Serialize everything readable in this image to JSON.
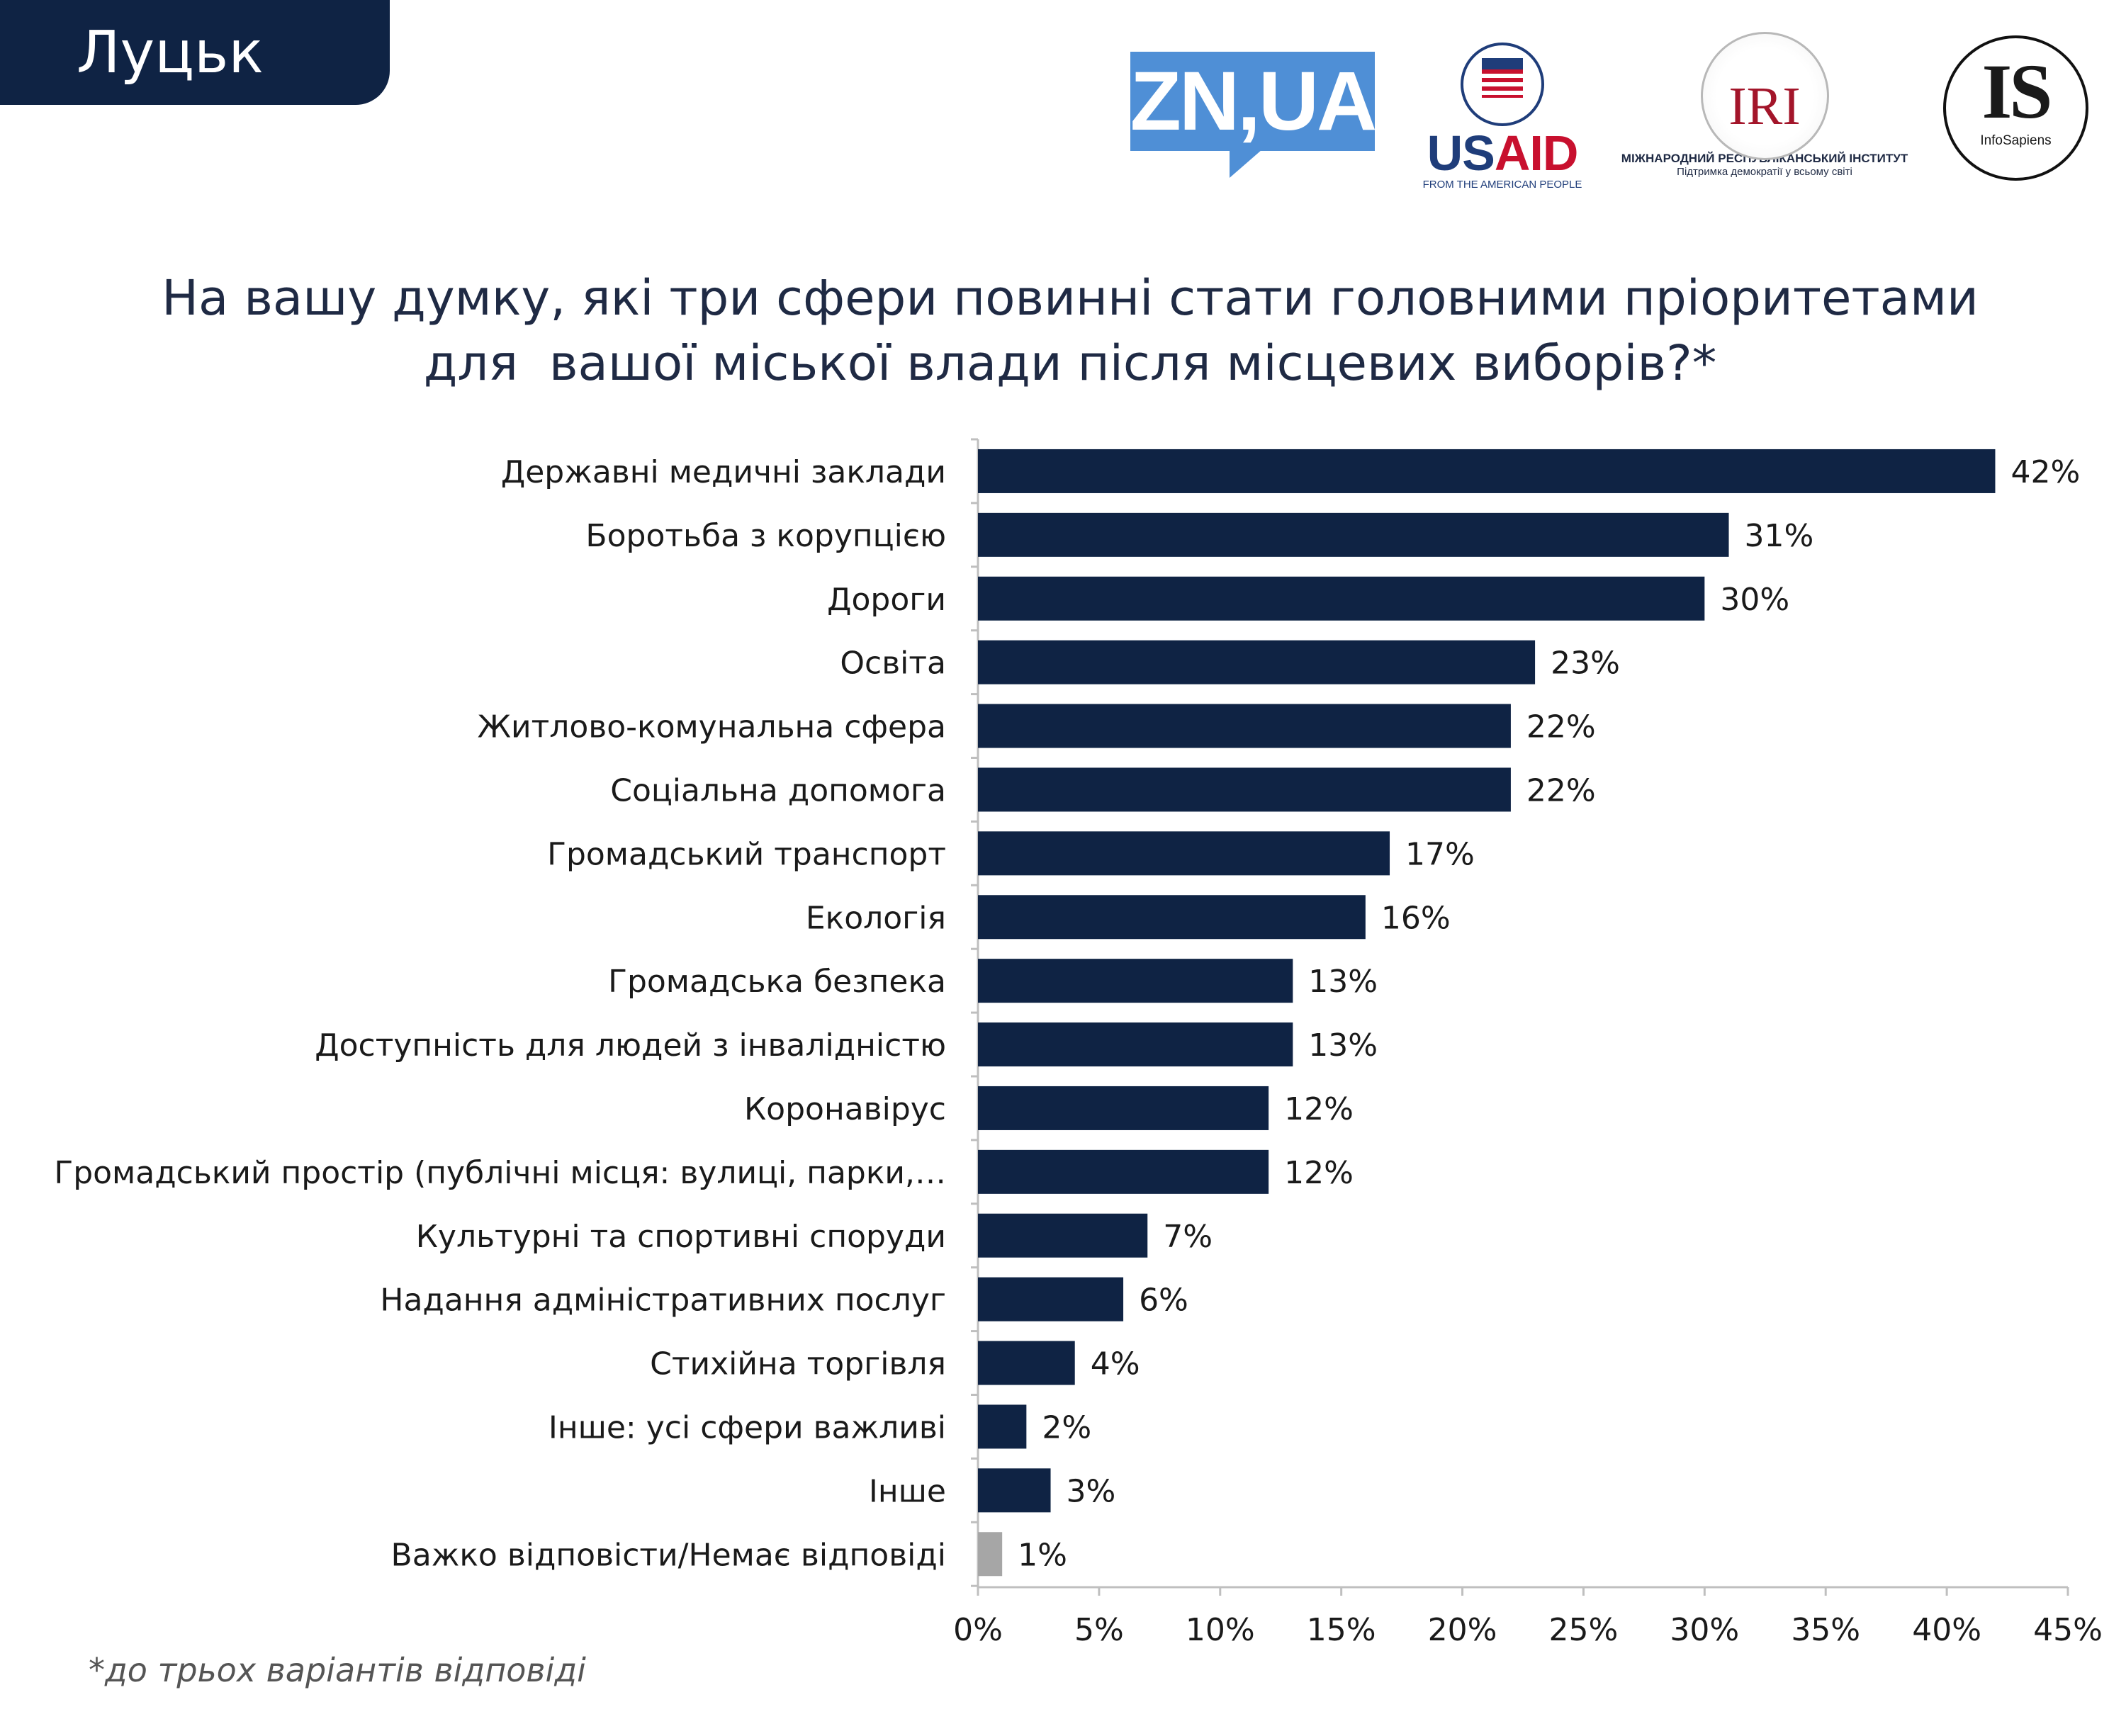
{
  "header": {
    "city": "Луцьк"
  },
  "logos": {
    "zn": "ZN,UA",
    "usaid": {
      "us": "US",
      "aid": "AID",
      "tagline": "FROM THE AMERICAN PEOPLE"
    },
    "iri": {
      "mark": "IRI",
      "name": "МІЖНАРОДНИЙ РЕСПУБЛІКАНСЬКИЙ ІНСТИТУТ",
      "tagline": "Підтримка демократії у всьому світі"
    },
    "infosapiens": {
      "mark": "IS",
      "name": "InfoSapiens"
    }
  },
  "colors": {
    "bar": "#0f2344",
    "bar_na": "#a6a6a6",
    "axis": "#bfbfbf",
    "label": "#1a1a1a"
  },
  "chart_data": {
    "type": "bar",
    "orientation": "horizontal",
    "title": "На вашу думку, які три сфери повинні стати головними пріоритетами для  вашої міської влади після місцевих виборів?*",
    "title_lines": [
      "На вашу думку, які три сфери повинні стати головними пріоритетами",
      "для  вашої міської влади після місцевих виборів?*"
    ],
    "categories": [
      "Державні медичні заклади",
      "Боротьба з корупцією",
      "Дороги",
      "Освіта",
      "Житлово-комунальна сфера",
      "Соціальна допомога",
      "Громадський транспорт",
      "Екологія",
      "Громадська безпека",
      "Доступність для людей з інвалідністю",
      "Коронавірус",
      "Громадський простір (публічні місця: вулиці, парки,…",
      "Культурні та спортивні споруди",
      "Надання адміністративних послуг",
      "Стихійна торгівля",
      "Інше: усі сфери важливі",
      "Інше",
      "Важко відповісти/Немає відповіді"
    ],
    "values": [
      42,
      31,
      30,
      23,
      22,
      22,
      17,
      16,
      13,
      13,
      12,
      12,
      7,
      6,
      4,
      2,
      3,
      1
    ],
    "value_labels": [
      "42%",
      "31%",
      "30%",
      "23%",
      "22%",
      "22%",
      "17%",
      "16%",
      "13%",
      "13%",
      "12%",
      "12%",
      "7%",
      "6%",
      "4%",
      "2%",
      "3%",
      "1%"
    ],
    "highlight_last": true,
    "xlim": [
      0,
      45
    ],
    "xticks": [
      0,
      5,
      10,
      15,
      20,
      25,
      30,
      35,
      40,
      45
    ],
    "xtick_labels": [
      "0%",
      "5%",
      "10%",
      "15%",
      "20%",
      "25%",
      "30%",
      "35%",
      "40%",
      "45%"
    ],
    "xlabel": "",
    "ylabel": "",
    "grid": false,
    "legend": "none"
  },
  "footnote": "*до трьох варіантів відповіді"
}
